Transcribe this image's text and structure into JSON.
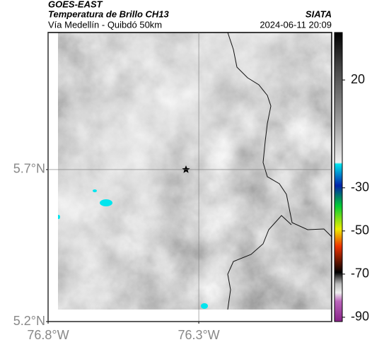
{
  "header": {
    "satellite": "GOES-EAST",
    "product": "Temperatura de Brillo CH13",
    "route": "Vía Medellín - Quibdó 50km",
    "source": "SIATA",
    "datetime": "2024-06-11 20:09"
  },
  "map": {
    "lat_range": [
      5.2,
      6.151
    ],
    "lon_range": [
      -76.8,
      -75.859
    ],
    "lat_ticks": [
      {
        "value": 5.7,
        "label": "5.7°N"
      },
      {
        "value": 5.2,
        "label": "5.2°N"
      }
    ],
    "lon_ticks": [
      {
        "value": -76.8,
        "label": "76.8°W"
      },
      {
        "value": -76.3,
        "label": "76.3°W"
      }
    ],
    "grid": true
  },
  "colorbar": {
    "range": [
      -92,
      42
    ],
    "ticks": [
      20,
      -30,
      -50,
      -70,
      -90
    ]
  }
}
